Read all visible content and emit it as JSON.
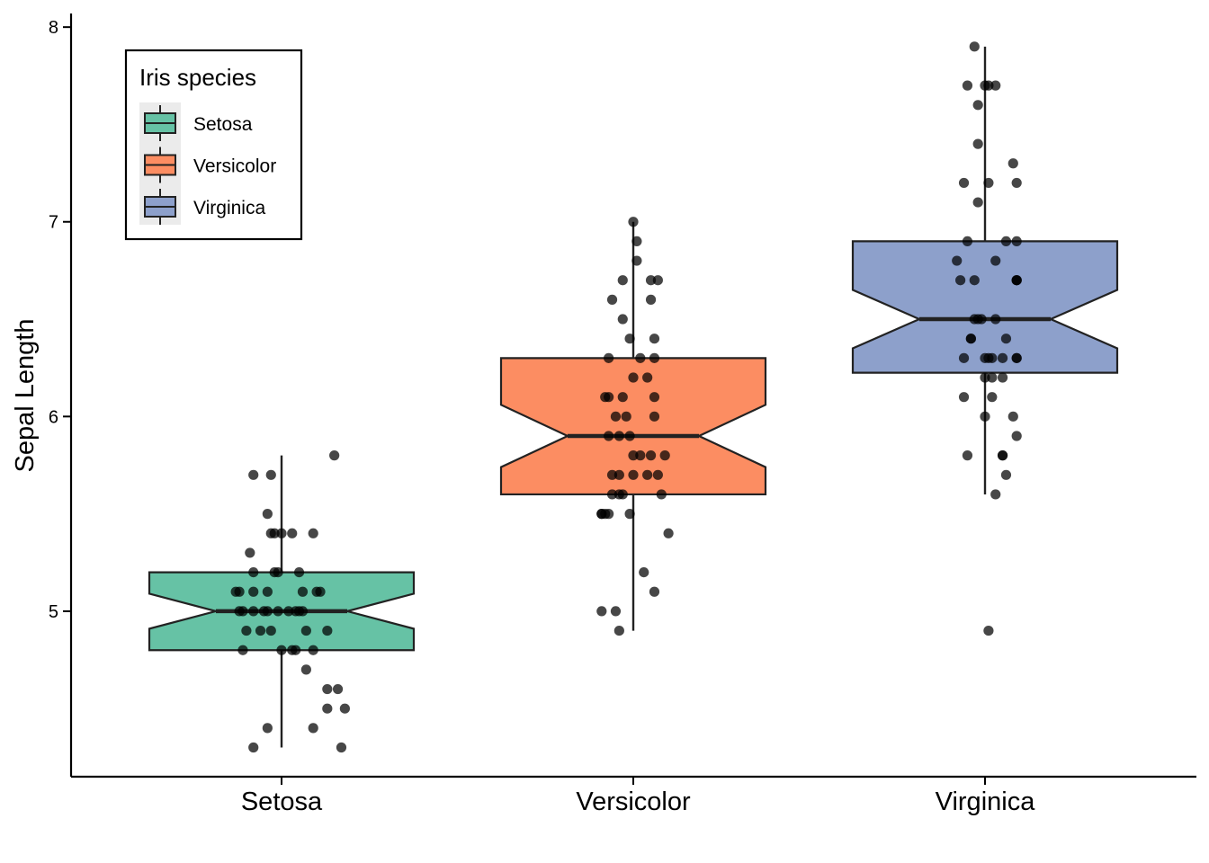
{
  "chart_data": {
    "type": "boxplot",
    "ylabel": "Sepal Length",
    "xlabel": "",
    "ylim": [
      4.15,
      8.07
    ],
    "y_ticks": [
      5,
      6,
      7,
      8
    ],
    "y_tick_labels": [
      "5",
      "6",
      "7",
      "8"
    ],
    "grid": false,
    "notched": true,
    "jittered_points": true,
    "legend": {
      "title": "Iris species",
      "position": "top-left"
    },
    "series": [
      {
        "name": "Setosa",
        "color": "#66c2a5",
        "stats": {
          "whisker_low": 4.3,
          "q1": 4.8,
          "median": 5.0,
          "q3": 5.2,
          "whisker_high": 5.8,
          "notch_low": 4.91,
          "notch_high": 5.09
        },
        "points": [
          [
            -0.13,
            5.1
          ],
          [
            -0.08,
            5.1
          ],
          [
            0.05,
            5.0
          ],
          [
            0.1,
            5.1
          ],
          [
            -0.03,
            4.9
          ],
          [
            -0.11,
            4.8
          ],
          [
            0.16,
            4.6
          ],
          [
            0.13,
            4.5
          ],
          [
            0.18,
            4.5
          ],
          [
            -0.04,
            4.4
          ],
          [
            0.09,
            4.4
          ],
          [
            -0.08,
            4.3
          ],
          [
            0.17,
            4.3
          ],
          [
            0.07,
            4.7
          ],
          [
            0.13,
            4.6
          ],
          [
            -0.12,
            5.0
          ],
          [
            -0.05,
            5.0
          ],
          [
            0.04,
            4.8
          ],
          [
            -0.01,
            5.0
          ],
          [
            0.06,
            5.0
          ],
          [
            0.07,
            4.9
          ],
          [
            0.0,
            4.8
          ],
          [
            -0.08,
            5.0
          ],
          [
            0.13,
            4.9
          ],
          [
            0.09,
            4.8
          ],
          [
            0.0,
            5.4
          ],
          [
            -0.02,
            5.4
          ],
          [
            0.09,
            5.4
          ],
          [
            0.03,
            5.4
          ],
          [
            -0.03,
            5.4
          ],
          [
            -0.09,
            5.3
          ],
          [
            -0.08,
            5.2
          ],
          [
            -0.02,
            5.2
          ],
          [
            -0.04,
            5.5
          ],
          [
            -0.08,
            5.7
          ],
          [
            -0.03,
            5.7
          ],
          [
            0.15,
            5.8
          ],
          [
            -0.01,
            5.2
          ],
          [
            0.06,
            5.1
          ],
          [
            -0.04,
            5.1
          ],
          [
            -0.12,
            5.1
          ],
          [
            -0.04,
            5.0
          ],
          [
            0.04,
            5.0
          ],
          [
            0.02,
            5.0
          ],
          [
            -0.11,
            5.0
          ],
          [
            0.05,
            5.2
          ],
          [
            0.11,
            5.1
          ],
          [
            -0.06,
            4.9
          ],
          [
            0.03,
            4.8
          ],
          [
            -0.1,
            4.9
          ]
        ]
      },
      {
        "name": "Versicolor",
        "color": "#fc8d62",
        "stats": {
          "whisker_low": 4.9,
          "q1": 5.6,
          "median": 5.9,
          "q3": 6.3,
          "whisker_high": 7.0,
          "notch_low": 5.74,
          "notch_high": 6.06
        },
        "points": [
          [
            -0.06,
            6.6
          ],
          [
            -0.03,
            6.7
          ],
          [
            0.0,
            7.0
          ],
          [
            0.01,
            6.9
          ],
          [
            0.01,
            6.8
          ],
          [
            0.05,
            6.7
          ],
          [
            0.07,
            6.7
          ],
          [
            0.05,
            6.6
          ],
          [
            -0.03,
            6.5
          ],
          [
            -0.01,
            6.4
          ],
          [
            0.02,
            6.3
          ],
          [
            0.06,
            6.4
          ],
          [
            0.06,
            6.3
          ],
          [
            -0.07,
            6.3
          ],
          [
            0.0,
            6.2
          ],
          [
            0.04,
            6.2
          ],
          [
            -0.07,
            6.1
          ],
          [
            -0.03,
            6.1
          ],
          [
            -0.08,
            6.1
          ],
          [
            -0.05,
            6.0
          ],
          [
            -0.02,
            6.0
          ],
          [
            0.06,
            6.1
          ],
          [
            0.06,
            6.0
          ],
          [
            -0.07,
            5.9
          ],
          [
            -0.04,
            5.9
          ],
          [
            -0.01,
            5.9
          ],
          [
            0.0,
            5.8
          ],
          [
            0.02,
            5.8
          ],
          [
            0.05,
            5.8
          ],
          [
            -0.06,
            5.7
          ],
          [
            -0.04,
            5.7
          ],
          [
            0.07,
            5.7
          ],
          [
            0.09,
            5.8
          ],
          [
            -0.08,
            5.5
          ],
          [
            -0.06,
            5.6
          ],
          [
            -0.04,
            5.6
          ],
          [
            -0.03,
            5.6
          ],
          [
            0.08,
            5.6
          ],
          [
            -0.09,
            5.5
          ],
          [
            -0.09,
            5.5
          ],
          [
            -0.01,
            5.5
          ],
          [
            -0.07,
            5.5
          ],
          [
            0.1,
            5.4
          ],
          [
            0.03,
            5.2
          ],
          [
            0.06,
            5.1
          ],
          [
            -0.09,
            5.0
          ],
          [
            -0.05,
            5.0
          ],
          [
            -0.04,
            4.9
          ],
          [
            0.04,
            5.7
          ],
          [
            0.0,
            5.7
          ]
        ]
      },
      {
        "name": "Virginica",
        "color": "#8da0cb",
        "stats": {
          "whisker_low": 5.6,
          "q1": 6.225,
          "median": 6.5,
          "q3": 6.9,
          "whisker_high": 7.9,
          "notch_low": 6.35,
          "notch_high": 6.65
        },
        "points": [
          [
            -0.03,
            7.9
          ],
          [
            -0.05,
            7.7
          ],
          [
            0.0,
            7.7
          ],
          [
            0.01,
            7.7
          ],
          [
            0.03,
            7.7
          ],
          [
            -0.02,
            7.6
          ],
          [
            -0.02,
            7.4
          ],
          [
            0.08,
            7.3
          ],
          [
            -0.06,
            7.2
          ],
          [
            0.01,
            7.2
          ],
          [
            0.09,
            7.2
          ],
          [
            -0.02,
            7.1
          ],
          [
            -0.05,
            6.9
          ],
          [
            0.09,
            6.9
          ],
          [
            0.06,
            6.9
          ],
          [
            0.03,
            6.8
          ],
          [
            -0.08,
            6.8
          ],
          [
            -0.03,
            6.7
          ],
          [
            0.09,
            6.7
          ],
          [
            0.09,
            6.7
          ],
          [
            0.09,
            6.7
          ],
          [
            -0.07,
            6.7
          ],
          [
            -0.01,
            6.5
          ],
          [
            -0.02,
            6.5
          ],
          [
            0.03,
            6.5
          ],
          [
            -0.03,
            6.5
          ],
          [
            -0.04,
            6.4
          ],
          [
            0.06,
            6.4
          ],
          [
            0.05,
            6.3
          ],
          [
            -0.04,
            6.4
          ],
          [
            0.0,
            6.3
          ],
          [
            0.01,
            6.3
          ],
          [
            0.02,
            6.3
          ],
          [
            0.09,
            6.3
          ],
          [
            0.09,
            6.3
          ],
          [
            -0.06,
            6.3
          ],
          [
            0.05,
            6.2
          ],
          [
            0.02,
            6.2
          ],
          [
            -0.06,
            6.1
          ],
          [
            0.02,
            6.1
          ],
          [
            0.08,
            6.0
          ],
          [
            0.0,
            6.0
          ],
          [
            0.09,
            5.9
          ],
          [
            0.05,
            5.8
          ],
          [
            0.05,
            5.8
          ],
          [
            -0.05,
            5.8
          ],
          [
            0.06,
            5.7
          ],
          [
            0.03,
            5.6
          ],
          [
            0.01,
            4.9
          ],
          [
            0.0,
            6.2
          ]
        ]
      }
    ]
  }
}
